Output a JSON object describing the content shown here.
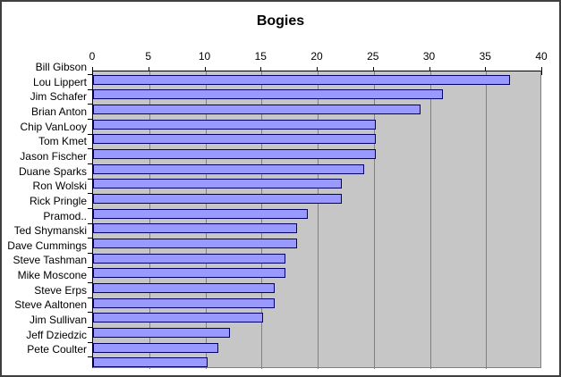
{
  "window": {
    "background_color": "#ffffff",
    "border_color": "#3f3f3f"
  },
  "chart_data": {
    "type": "bar",
    "orientation": "horizontal",
    "title": "Bogies",
    "xlabel": "",
    "ylabel": "",
    "categories": [
      "Bill Gibson",
      "Lou Lippert",
      "Jim Schafer",
      "Brian Anton",
      "Chip VanLooy",
      "Tom Kmet",
      "Jason Fischer",
      "Duane Sparks",
      "Ron Wolski",
      "Rick Pringle",
      "Pramod..",
      "Ted Shymanski",
      "Dave Cummings",
      "Steve Tashman",
      "Mike Moscone",
      "Steve Erps",
      "Steve Aaltonen",
      "Jim Sullivan",
      "Jeff Dziedzic",
      "Pete Coulter"
    ],
    "values": [
      37,
      31,
      29,
      25,
      25,
      25,
      24,
      22,
      22,
      19,
      18,
      18,
      17,
      17,
      16,
      16,
      15,
      12,
      11,
      10
    ],
    "xlim": [
      0,
      40
    ],
    "x_ticks": [
      0,
      5,
      10,
      15,
      20,
      25,
      30,
      35,
      40
    ],
    "value_axis_position": "top",
    "grid": true,
    "legend": false,
    "colors": {
      "bar_fill": "#9999ff",
      "bar_border": "#000066",
      "plot_background": "#c6c6c6",
      "gridline": "#808080",
      "axis_line": "#000000",
      "text": "#000000"
    }
  }
}
